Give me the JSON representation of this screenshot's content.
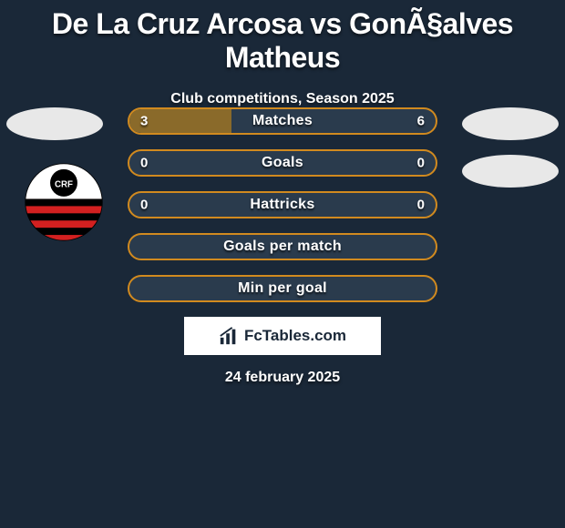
{
  "title": "De La Cruz Arcosa vs GonÃ§alves Matheus",
  "subtitle": "Club competitions, Season 2025",
  "date": "24 february 2025",
  "brand": "FcTables.com",
  "colors": {
    "background": "#1a2838",
    "bar_border": "#d18a1f",
    "bar_fill": "#8a6a2a",
    "bar_track": "#2a3b4d",
    "ellipse": "#e8e8e8",
    "text": "#ffffff"
  },
  "badge": {
    "bg_color": "#ffffff",
    "stripe_color": "#d32020",
    "band_color": "#000000",
    "center_text": "CRF",
    "center_text_color": "#ffffff"
  },
  "bars": [
    {
      "label": "Matches",
      "left": "3",
      "right": "6",
      "fill_pct": 33.3
    },
    {
      "label": "Goals",
      "left": "0",
      "right": "0",
      "fill_pct": 0
    },
    {
      "label": "Hattricks",
      "left": "0",
      "right": "0",
      "fill_pct": 0
    },
    {
      "label": "Goals per match",
      "left": "",
      "right": "",
      "fill_pct": 0
    },
    {
      "label": "Min per goal",
      "left": "",
      "right": "",
      "fill_pct": 0
    }
  ]
}
